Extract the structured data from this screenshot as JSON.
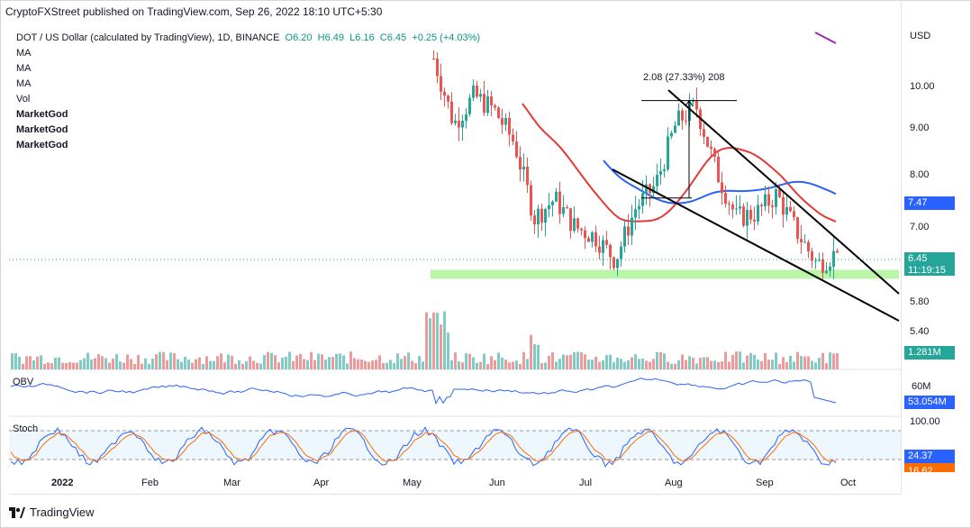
{
  "publisher": "CryptoFXStreet published on TradingView.com, Sep 26, 2022 18:10 UTC+5:30",
  "legend": {
    "symbol": "DOT / US Dollar (calculated by TradingView), 1D, BINANCE",
    "open": "O6.20",
    "high": "H6.49",
    "low": "L6.16",
    "close": "C6.45",
    "change": "+0.25 (+4.03%)",
    "ma": [
      "MA",
      "MA",
      "MA"
    ],
    "vol": "Vol",
    "indicators": [
      "MarketGod",
      "MarketGod",
      "MarketGod"
    ]
  },
  "currency": "USD",
  "price_axis": [
    "10.00",
    "9.00",
    "8.00",
    "7.00",
    "5.80",
    "5.40"
  ],
  "price_tags": {
    "ma_value": "7.47",
    "last_price": "6.45",
    "countdown": "11:19:15",
    "volume": "1.281M",
    "obv": "53.054M",
    "stoch_k": "24.37",
    "stoch_d": "16.62"
  },
  "obv_axis": "60M",
  "stoch_axis": "100.00",
  "panel_labels": {
    "obv": "OBV",
    "stoch": "Stoch"
  },
  "measure_label": "2.08 (27.33%) 208",
  "time_axis": [
    "2022",
    "Feb",
    "Mar",
    "Apr",
    "May",
    "Jun",
    "Jul",
    "Aug",
    "Sep",
    "Oct"
  ],
  "brand": "TradingView",
  "colors": {
    "up": "#26a69a",
    "down": "#ef5350",
    "ma_red": "#e53935",
    "ma_blue": "#2962ff",
    "ma_purple": "#9c27b0",
    "support": "#b9f6a8",
    "obv": "#2962ff",
    "stoch_k": "#2962ff",
    "stoch_d": "#ff6d00"
  },
  "chart_data": {
    "type": "candlestick",
    "ylim": [
      5.2,
      10.8
    ],
    "x_months": [
      "Jan",
      "Feb",
      "Mar",
      "Apr",
      "May",
      "Jun",
      "Jul",
      "Aug",
      "Sep"
    ],
    "close_path": [
      [
        "May",
        10.6
      ],
      [
        "May",
        9.2
      ],
      [
        "May",
        9.8
      ],
      [
        "Jun",
        9.5
      ],
      [
        "Jun",
        8.8
      ],
      [
        "Jun",
        7.2
      ],
      [
        "Jun",
        7.6
      ],
      [
        "Jul",
        7.0
      ],
      [
        "Jul",
        6.8
      ],
      [
        "Jul",
        6.3
      ],
      [
        "Jul",
        7.4
      ],
      [
        "Aug",
        7.9
      ],
      [
        "Aug",
        9.2
      ],
      [
        "Aug",
        9.6
      ],
      [
        "Aug",
        8.2
      ],
      [
        "Aug",
        7.2
      ],
      [
        "Sep",
        7.3
      ],
      [
        "Sep",
        7.7
      ],
      [
        "Sep",
        6.9
      ],
      [
        "Sep",
        6.2
      ],
      [
        "Sep",
        6.45
      ]
    ],
    "last": {
      "open": 6.2,
      "high": 6.49,
      "low": 6.16,
      "close": 6.45
    },
    "support_zone": [
      5.92,
      6.05
    ],
    "measure": {
      "from": 7.62,
      "to": 9.7,
      "change": 2.08,
      "pct": 27.33
    }
  }
}
